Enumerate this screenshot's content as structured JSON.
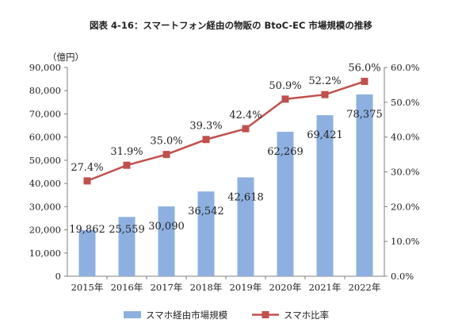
{
  "chart_data": {
    "type": "bar+line",
    "title": "図表 4-16：スマートフォン経由の物販の BtoC-EC 市場規模の推移",
    "y_unit_label": "（億円）",
    "categories": [
      "2015年",
      "2016年",
      "2017年",
      "2018年",
      "2019年",
      "2020年",
      "2021年",
      "2022年"
    ],
    "series": [
      {
        "name": "スマホ経由市場規模",
        "type": "bar",
        "axis": "left",
        "color": "#8db0e0",
        "values": [
          19862,
          25559,
          30090,
          36542,
          42618,
          62269,
          69421,
          78375
        ],
        "labels": [
          "19,862",
          "25,559",
          "30,090",
          "36,542",
          "42,618",
          "62,269",
          "69,421",
          "78,375"
        ]
      },
      {
        "name": "スマホ比率",
        "type": "line",
        "axis": "right",
        "color": "#c0504d",
        "values": [
          27.4,
          31.9,
          35.0,
          39.3,
          42.4,
          50.9,
          52.2,
          56.0
        ],
        "labels": [
          "27.4%",
          "31.9%",
          "35.0%",
          "39.3%",
          "42.4%",
          "50.9%",
          "52.2%",
          "56.0%"
        ]
      }
    ],
    "y_left": {
      "min": 0,
      "max": 90000,
      "ticks": [
        "0",
        "10,000",
        "20,000",
        "30,000",
        "40,000",
        "50,000",
        "60,000",
        "70,000",
        "80,000",
        "90,000"
      ]
    },
    "y_right": {
      "min": 0,
      "max": 60,
      "ticks": [
        "0.0%",
        "10.0%",
        "20.0%",
        "30.0%",
        "40.0%",
        "50.0%",
        "60.0%"
      ]
    },
    "legend_position": "bottom",
    "grid": false
  }
}
